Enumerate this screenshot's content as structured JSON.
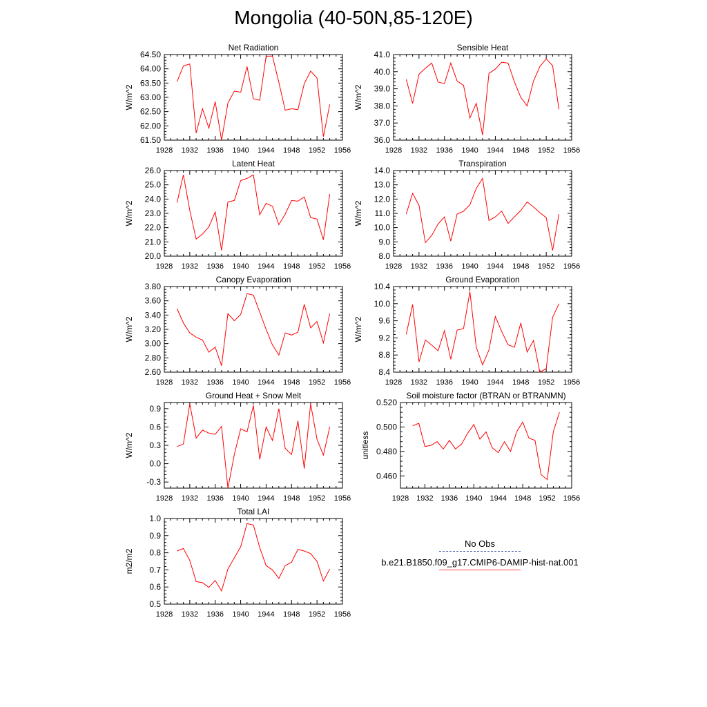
{
  "page": {
    "title": "Mongolia (40-50N,85-120E)",
    "legend": [
      {
        "label": "No Obs",
        "style": "dashed",
        "color": "#4b5fa8"
      },
      {
        "label": "b.e21.B1850.f09_g17.CMIP6-DAMIP-hist-nat.001",
        "style": "solid",
        "color": "#ff0000"
      }
    ]
  },
  "chart_data": [
    {
      "type": "line",
      "title": "Net Radiation",
      "ylabel": "W/m^2",
      "xlim": [
        1928,
        1956
      ],
      "xticks": [
        "1928",
        "1932",
        "1936",
        "1940",
        "1944",
        "1948",
        "1952",
        "1956"
      ],
      "ylim": [
        61.5,
        64.5
      ],
      "yticks": [
        "61.50",
        "62.00",
        "62.50",
        "63.00",
        "63.50",
        "64.00",
        "64.50"
      ],
      "series": [
        {
          "color": "#ff0000",
          "x": [
            1930,
            1931,
            1932,
            1933,
            1934,
            1935,
            1936,
            1937,
            1938,
            1939,
            1940,
            1941,
            1942,
            1943,
            1944,
            1945,
            1946,
            1947,
            1948,
            1949,
            1950,
            1951,
            1952,
            1953,
            1954
          ],
          "y": [
            63.55,
            64.1,
            64.17,
            61.75,
            62.6,
            61.92,
            62.85,
            61.5,
            62.8,
            63.22,
            63.18,
            64.08,
            62.95,
            62.9,
            64.44,
            64.45,
            63.52,
            62.55,
            62.6,
            62.57,
            63.48,
            63.92,
            63.68,
            61.62,
            62.75
          ]
        }
      ]
    },
    {
      "type": "line",
      "title": "Sensible Heat",
      "ylabel": "W/m^2",
      "xlim": [
        1928,
        1956
      ],
      "xticks": [
        "1928",
        "1932",
        "1936",
        "1940",
        "1944",
        "1948",
        "1952",
        "1956"
      ],
      "ylim": [
        36.0,
        41.0
      ],
      "yticks": [
        "36.0",
        "37.0",
        "38.0",
        "39.0",
        "40.0",
        "41.0"
      ],
      "series": [
        {
          "color": "#ff0000",
          "x": [
            1930,
            1931,
            1932,
            1933,
            1934,
            1935,
            1936,
            1937,
            1938,
            1939,
            1940,
            1941,
            1942,
            1943,
            1944,
            1945,
            1946,
            1947,
            1948,
            1949,
            1950,
            1951,
            1952,
            1953,
            1954
          ],
          "y": [
            39.55,
            38.15,
            39.85,
            40.2,
            40.5,
            39.4,
            39.3,
            40.5,
            39.45,
            39.2,
            37.3,
            38.15,
            36.3,
            39.9,
            40.15,
            40.55,
            40.5,
            39.4,
            38.5,
            38.0,
            39.45,
            40.3,
            40.75,
            40.35,
            37.8
          ]
        }
      ]
    },
    {
      "type": "line",
      "title": "Latent Heat",
      "ylabel": "W/m^2",
      "xlim": [
        1928,
        1956
      ],
      "xticks": [
        "1928",
        "1932",
        "1936",
        "1940",
        "1944",
        "1948",
        "1952",
        "1956"
      ],
      "ylim": [
        20.0,
        26.0
      ],
      "yticks": [
        "20.0",
        "21.0",
        "22.0",
        "23.0",
        "24.0",
        "25.0",
        "26.0"
      ],
      "series": [
        {
          "color": "#ff0000",
          "x": [
            1930,
            1931,
            1932,
            1933,
            1934,
            1935,
            1936,
            1937,
            1938,
            1939,
            1940,
            1941,
            1942,
            1943,
            1944,
            1945,
            1946,
            1947,
            1948,
            1949,
            1950,
            1951,
            1952,
            1953,
            1954
          ],
          "y": [
            23.75,
            25.7,
            23.2,
            21.2,
            21.55,
            22.05,
            23.1,
            20.4,
            23.8,
            23.9,
            25.3,
            25.45,
            25.7,
            22.9,
            23.7,
            23.5,
            22.2,
            22.95,
            23.9,
            23.85,
            24.15,
            22.7,
            22.6,
            21.15,
            24.35
          ]
        }
      ]
    },
    {
      "type": "line",
      "title": "Transpiration",
      "ylabel": "W/m^2",
      "xlim": [
        1928,
        1956
      ],
      "xticks": [
        "1928",
        "1932",
        "1936",
        "1940",
        "1944",
        "1948",
        "1952",
        "1956"
      ],
      "ylim": [
        8.0,
        14.0
      ],
      "yticks": [
        "8.0",
        "9.0",
        "10.0",
        "11.0",
        "12.0",
        "13.0",
        "14.0"
      ],
      "series": [
        {
          "color": "#ff0000",
          "x": [
            1930,
            1931,
            1932,
            1933,
            1934,
            1935,
            1936,
            1937,
            1938,
            1939,
            1940,
            1941,
            1942,
            1943,
            1944,
            1945,
            1946,
            1947,
            1948,
            1949,
            1950,
            1951,
            1952,
            1953,
            1954
          ],
          "y": [
            10.95,
            12.4,
            11.55,
            8.95,
            9.45,
            10.25,
            10.75,
            9.05,
            10.95,
            11.15,
            11.6,
            12.75,
            13.45,
            10.5,
            10.75,
            11.15,
            10.3,
            10.75,
            11.2,
            11.8,
            11.45,
            11.05,
            10.7,
            8.4,
            10.95
          ]
        }
      ]
    },
    {
      "type": "line",
      "title": "Canopy Evaporation",
      "ylabel": "W/m^2",
      "xlim": [
        1928,
        1956
      ],
      "xticks": [
        "1928",
        "1932",
        "1936",
        "1940",
        "1944",
        "1948",
        "1952",
        "1956"
      ],
      "ylim": [
        2.6,
        3.8
      ],
      "yticks": [
        "2.60",
        "2.80",
        "3.00",
        "3.20",
        "3.40",
        "3.60",
        "3.80"
      ],
      "series": [
        {
          "color": "#ff0000",
          "x": [
            1930,
            1931,
            1932,
            1933,
            1934,
            1935,
            1936,
            1937,
            1938,
            1939,
            1940,
            1941,
            1942,
            1943,
            1944,
            1945,
            1946,
            1947,
            1948,
            1949,
            1950,
            1951,
            1952,
            1953,
            1954
          ],
          "y": [
            3.49,
            3.29,
            3.15,
            3.09,
            3.05,
            2.88,
            2.95,
            2.69,
            3.42,
            3.32,
            3.41,
            3.7,
            3.68,
            3.44,
            3.2,
            2.98,
            2.84,
            3.15,
            3.12,
            3.16,
            3.55,
            3.22,
            3.31,
            3.01,
            3.42
          ]
        }
      ]
    },
    {
      "type": "line",
      "title": "Ground Evaporation",
      "ylabel": "W/m^2",
      "xlim": [
        1928,
        1956
      ],
      "xticks": [
        "1928",
        "1932",
        "1936",
        "1940",
        "1944",
        "1948",
        "1952",
        "1956"
      ],
      "ylim": [
        8.4,
        10.4
      ],
      "yticks": [
        "8.4",
        "8.8",
        "9.2",
        "9.6",
        "10.0",
        "10.4"
      ],
      "series": [
        {
          "color": "#ff0000",
          "x": [
            1930,
            1931,
            1932,
            1933,
            1934,
            1935,
            1936,
            1937,
            1938,
            1939,
            1940,
            1941,
            1942,
            1943,
            1944,
            1945,
            1946,
            1947,
            1948,
            1949,
            1950,
            1951,
            1952,
            1953,
            1954
          ],
          "y": [
            9.28,
            9.98,
            8.64,
            9.15,
            9.03,
            8.9,
            9.37,
            8.7,
            9.38,
            9.42,
            10.28,
            8.98,
            8.57,
            8.92,
            9.7,
            9.35,
            9.04,
            8.98,
            9.55,
            8.87,
            9.14,
            8.4,
            8.48,
            9.68,
            10.0
          ]
        }
      ]
    },
    {
      "type": "line",
      "title": "Ground Heat + Snow Melt",
      "ylabel": "W/m^2",
      "xlim": [
        1928,
        1956
      ],
      "xticks": [
        "1928",
        "1932",
        "1936",
        "1940",
        "1944",
        "1948",
        "1952",
        "1956"
      ],
      "ylim": [
        -0.4,
        1.0
      ],
      "yticks": [
        "-0.3",
        "0.0",
        "0.3",
        "0.6",
        "0.9"
      ],
      "ytick_values": [
        -0.3,
        0.0,
        0.3,
        0.6,
        0.9
      ],
      "series": [
        {
          "color": "#ff0000",
          "x": [
            1930,
            1931,
            1932,
            1933,
            1934,
            1935,
            1936,
            1937,
            1938,
            1939,
            1940,
            1941,
            1942,
            1943,
            1944,
            1945,
            1946,
            1947,
            1948,
            1949,
            1950,
            1951,
            1952,
            1953,
            1954
          ],
          "y": [
            0.28,
            0.32,
            0.98,
            0.42,
            0.55,
            0.5,
            0.48,
            0.61,
            -0.4,
            0.15,
            0.57,
            0.52,
            0.95,
            0.07,
            0.6,
            0.38,
            0.9,
            0.25,
            0.15,
            0.7,
            -0.08,
            0.98,
            0.4,
            0.14,
            0.6
          ]
        }
      ]
    },
    {
      "type": "line",
      "title": "Soil moisture factor (BTRAN or BTRANMN)",
      "ylabel": "unitless",
      "xlim": [
        1928,
        1956
      ],
      "xticks": [
        "1928",
        "1932",
        "1936",
        "1940",
        "1944",
        "1948",
        "1952",
        "1956"
      ],
      "ylim": [
        0.45,
        0.52
      ],
      "yticks": [
        "0.460",
        "0.480",
        "0.500",
        "0.520"
      ],
      "ytick_values": [
        0.46,
        0.48,
        0.5,
        0.52
      ],
      "series": [
        {
          "color": "#ff0000",
          "x": [
            1930,
            1931,
            1932,
            1933,
            1934,
            1935,
            1936,
            1937,
            1938,
            1939,
            1940,
            1941,
            1942,
            1943,
            1944,
            1945,
            1946,
            1947,
            1948,
            1949,
            1950,
            1951,
            1952,
            1953,
            1954
          ],
          "y": [
            0.501,
            0.503,
            0.484,
            0.485,
            0.488,
            0.482,
            0.489,
            0.482,
            0.486,
            0.495,
            0.502,
            0.49,
            0.496,
            0.483,
            0.479,
            0.488,
            0.48,
            0.496,
            0.504,
            0.491,
            0.489,
            0.461,
            0.457,
            0.496,
            0.512
          ]
        }
      ]
    },
    {
      "type": "line",
      "title": "Total LAI",
      "ylabel": "m2/m2",
      "xlim": [
        1928,
        1956
      ],
      "xticks": [
        "1928",
        "1932",
        "1936",
        "1940",
        "1944",
        "1948",
        "1952",
        "1956"
      ],
      "ylim": [
        0.5,
        1.0
      ],
      "yticks": [
        "0.5",
        "0.6",
        "0.7",
        "0.8",
        "0.9",
        "1.0"
      ],
      "series": [
        {
          "color": "#ff0000",
          "x": [
            1930,
            1931,
            1932,
            1933,
            1934,
            1935,
            1936,
            1937,
            1938,
            1939,
            1940,
            1941,
            1942,
            1943,
            1944,
            1945,
            1946,
            1947,
            1948,
            1949,
            1950,
            1951,
            1952,
            1953,
            1954
          ],
          "y": [
            0.81,
            0.825,
            0.755,
            0.632,
            0.625,
            0.598,
            0.638,
            0.577,
            0.705,
            0.77,
            0.835,
            0.97,
            0.962,
            0.83,
            0.725,
            0.7,
            0.65,
            0.725,
            0.745,
            0.82,
            0.81,
            0.795,
            0.75,
            0.635,
            0.705
          ]
        }
      ]
    }
  ]
}
